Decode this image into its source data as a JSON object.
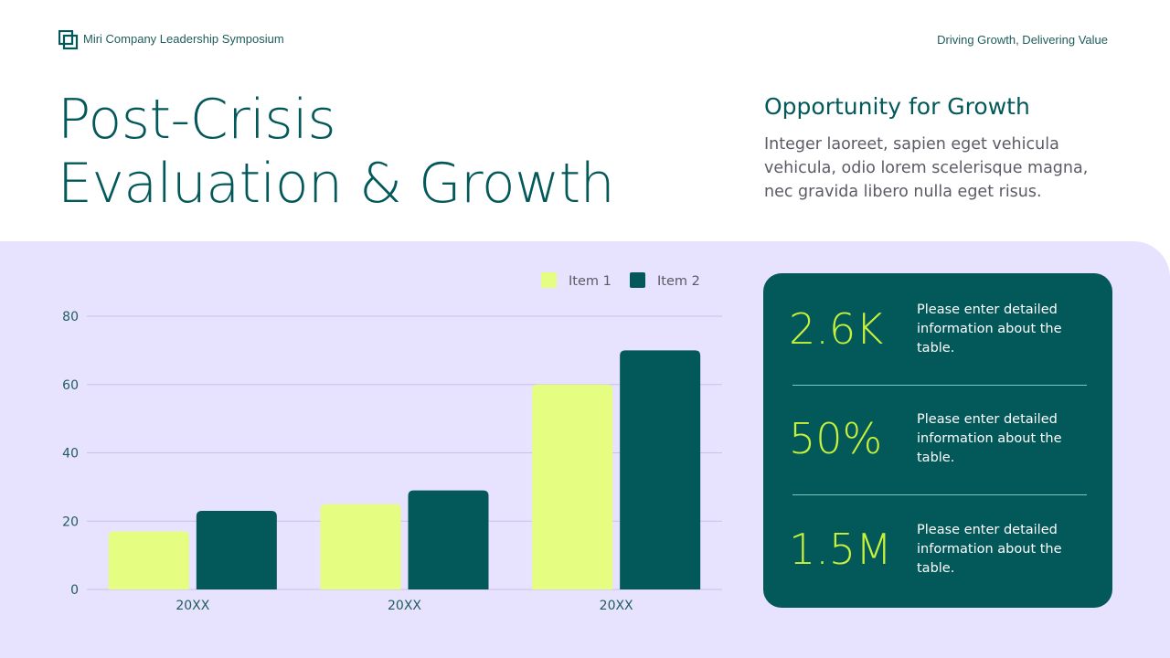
{
  "header": {
    "company": "Miri Company Leadership Symposium",
    "tagline": "Driving Growth, Delivering Value"
  },
  "title_line1": "Post-Crisis",
  "title_line2": "Evaluation & Growth",
  "side": {
    "heading": "Opportunity for Growth",
    "text": "Integer laoreet, sapien eget vehicula vehicula, odio lorem scelerisque magna, nec gravida libero nulla eget risus."
  },
  "stats": [
    {
      "value": "2.6K",
      "text": "Please enter detailed information about the table."
    },
    {
      "value": "50%",
      "text": "Please enter detailed information about the table."
    },
    {
      "value": "1.5M",
      "text": "Please enter detailed information about the table."
    }
  ],
  "colors": {
    "item1": "#e5fd80",
    "item2": "#03585a",
    "grid": "#c9c3e3",
    "axis": "#1f5d5c"
  },
  "chart_data": {
    "type": "bar",
    "categories": [
      "20XX",
      "20XX",
      "20XX"
    ],
    "series": [
      {
        "name": "Item 1",
        "values": [
          17,
          25,
          60
        ]
      },
      {
        "name": "Item 2",
        "values": [
          23,
          29,
          70
        ]
      }
    ],
    "yticks": [
      0,
      20,
      40,
      60,
      80
    ],
    "ylim": [
      0,
      80
    ],
    "legend": "top-right",
    "grid": true,
    "title": "",
    "xlabel": "",
    "ylabel": ""
  }
}
